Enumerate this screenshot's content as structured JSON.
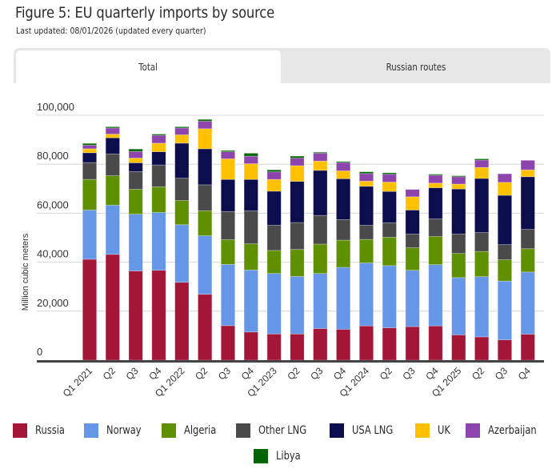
{
  "header": {
    "title": "Figure 5: EU quarterly imports by source",
    "subtitle": "Last updated: 08/01/2026 (updated every quarter)"
  },
  "tabs": [
    {
      "label": "Total",
      "active": true
    },
    {
      "label": "Russian routes",
      "active": false
    }
  ],
  "chart_data": {
    "type": "bar",
    "stacked": true,
    "title": "EU quarterly imports by source",
    "xlabel": "",
    "ylabel": "Million cubic meters",
    "ylim": [
      0,
      100000
    ],
    "yticks": [
      0,
      20000,
      40000,
      60000,
      80000,
      100000
    ],
    "ytick_labels": [
      "0",
      "20,000",
      "40,000",
      "60,000",
      "80,000",
      "100,000"
    ],
    "grid": true,
    "legend_position": "bottom",
    "categories": [
      "Q1 2021",
      "Q2",
      "Q3",
      "Q4",
      "Q1 2022",
      "Q2",
      "Q3",
      "Q4",
      "Q1 2023",
      "Q2",
      "Q3",
      "Q4",
      "Q1 2024",
      "Q2",
      "Q3",
      "Q4",
      "Q1 2025",
      "Q2",
      "Q3",
      "Q4"
    ],
    "series": [
      {
        "name": "Russia",
        "color": "#a31638",
        "values": [
          41200,
          43200,
          36400,
          36700,
          31800,
          26900,
          14100,
          11500,
          10700,
          10700,
          12900,
          12600,
          14000,
          13200,
          13700,
          14000,
          10300,
          9500,
          8300,
          10600
        ]
      },
      {
        "name": "Norway",
        "color": "#6696e8",
        "values": [
          20100,
          20100,
          23200,
          23600,
          23500,
          23900,
          25000,
          25300,
          24700,
          23500,
          22500,
          25300,
          25700,
          25400,
          23000,
          25000,
          23400,
          24600,
          24000,
          25400
        ]
      },
      {
        "name": "Algeria",
        "color": "#5e9000",
        "values": [
          12500,
          12000,
          10200,
          10500,
          9900,
          10200,
          10100,
          10700,
          9400,
          11000,
          12000,
          11100,
          9600,
          11600,
          9200,
          11500,
          9900,
          10300,
          8700,
          9500
        ]
      },
      {
        "name": "Other LNG",
        "color": "#4a4a4a",
        "values": [
          6900,
          8900,
          7200,
          8900,
          9100,
          10600,
          11500,
          13500,
          10300,
          11000,
          11700,
          8400,
          5800,
          5900,
          5600,
          7200,
          7900,
          7700,
          6200,
          7900
        ]
      },
      {
        "name": "USA LNG",
        "color": "#0b0d4d",
        "values": [
          4000,
          6600,
          3600,
          5400,
          14300,
          14700,
          13100,
          12800,
          13900,
          16800,
          18400,
          16700,
          15900,
          12800,
          9800,
          12700,
          18400,
          22100,
          20100,
          21500
        ]
      },
      {
        "name": "UK",
        "color": "#ffc000",
        "values": [
          1600,
          1500,
          1900,
          3500,
          3400,
          8200,
          8400,
          6400,
          4800,
          6400,
          3800,
          3200,
          2100,
          3800,
          5400,
          1900,
          2000,
          4500,
          5300,
          2800
        ]
      },
      {
        "name": "Azerbaijan",
        "color": "#8e44ad",
        "values": [
          1500,
          2500,
          2700,
          3200,
          2800,
          3100,
          2900,
          3100,
          3100,
          3100,
          3200,
          3400,
          3100,
          3200,
          3000,
          3200,
          3000,
          3000,
          3500,
          3900
        ]
      },
      {
        "name": "Libya",
        "color": "#006400",
        "values": [
          700,
          500,
          1000,
          500,
          500,
          700,
          500,
          1200,
          800,
          800,
          400,
          400,
          700,
          600,
          0,
          400,
          400,
          500,
          0,
          0
        ]
      }
    ]
  },
  "legend": {
    "rows": [
      [
        0,
        1,
        2,
        3,
        4,
        5,
        6
      ],
      [
        7
      ]
    ]
  }
}
